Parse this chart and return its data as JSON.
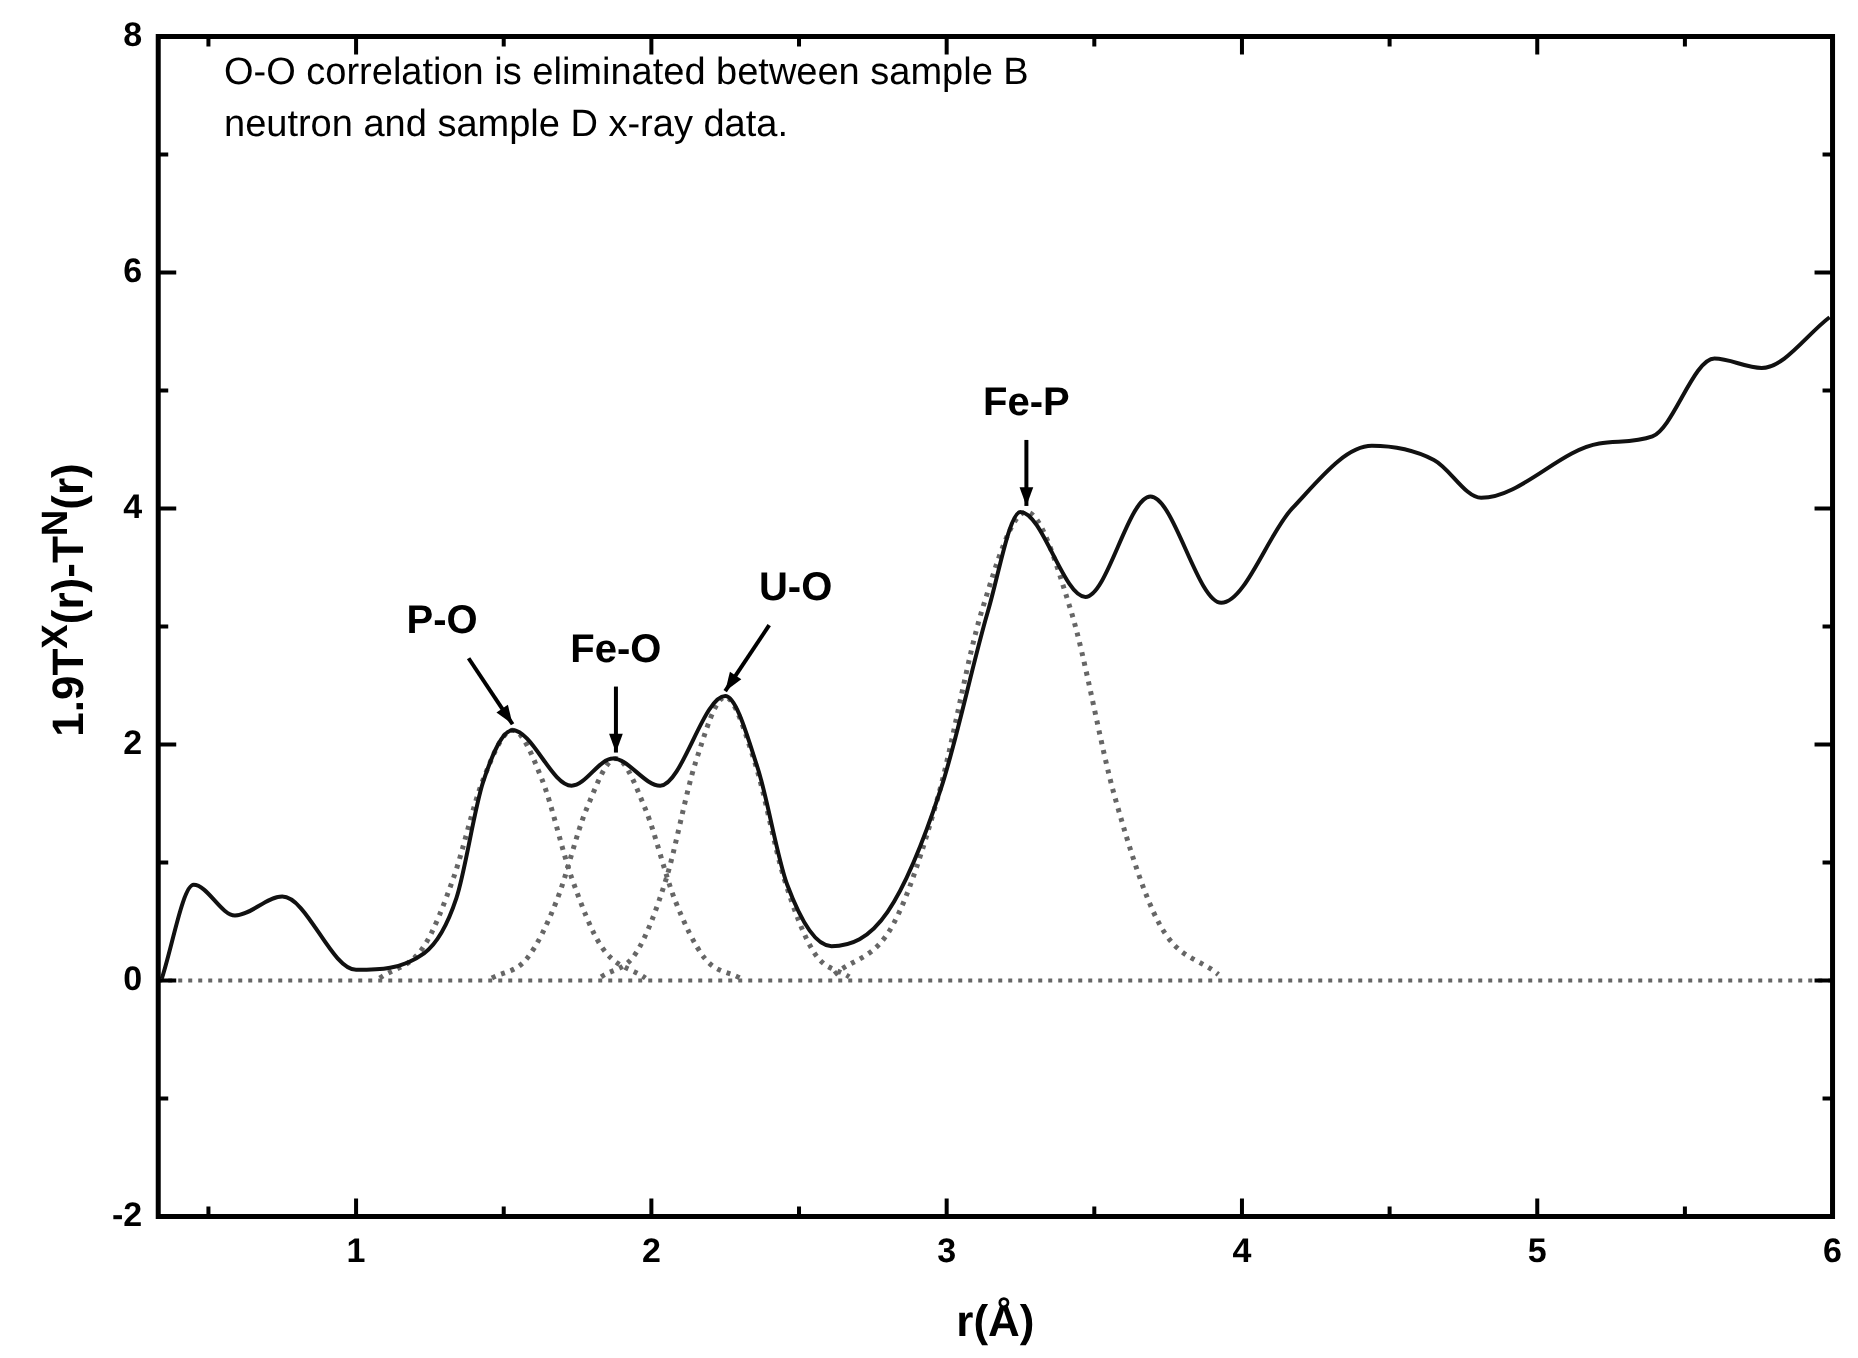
{
  "chart_data": {
    "type": "line",
    "xlabel": "r(Å)",
    "ylabel": "1.9T$^{X}$(r)-T$^{N}$(r)",
    "xlim": [
      0.33,
      6
    ],
    "ylim": [
      -2,
      8
    ],
    "xticks": [
      {
        "value": 0.5,
        "label": null
      },
      1,
      {
        "value": 1.5,
        "label": null
      },
      2,
      {
        "value": 2.5,
        "label": null
      },
      3,
      {
        "value": 3.5,
        "label": null
      },
      4,
      {
        "value": 4.5,
        "label": null
      },
      5,
      {
        "value": 5.5,
        "label": null
      },
      6
    ],
    "yticks": [
      -2,
      {
        "value": -1,
        "label": null
      },
      0,
      {
        "value": 1,
        "label": null
      },
      2,
      {
        "value": 3,
        "label": null
      },
      4,
      {
        "value": 5,
        "label": null
      },
      6,
      {
        "value": 7,
        "label": null
      },
      8
    ],
    "grid": false,
    "legend": false,
    "marker": "none",
    "series": [
      {
        "color": "#111111",
        "line_style": "solid",
        "x": [
          0.34,
          0.45,
          0.59,
          0.75,
          1.0,
          1.23,
          1.34,
          1.43,
          1.53,
          1.73,
          1.87,
          2.03,
          2.25,
          2.36,
          2.46,
          2.61,
          2.8,
          2.98,
          3.14,
          3.25,
          3.47,
          3.69,
          3.93,
          4.17,
          4.44,
          4.65,
          4.81,
          5.21,
          5.39,
          5.6,
          5.76,
          5.99
        ],
        "values": [
          0,
          0.81,
          0.55,
          0.71,
          0.09,
          0.23,
          0.7,
          1.68,
          2.12,
          1.65,
          1.88,
          1.65,
          2.41,
          1.8,
          0.81,
          0.29,
          0.58,
          1.62,
          3.13,
          3.97,
          3.25,
          4.1,
          3.2,
          4.0,
          4.53,
          4.41,
          4.09,
          4.55,
          4.61,
          5.27,
          5.19,
          5.62
        ]
      },
      {
        "color": "#666666",
        "line_style": "dotted",
        "x": [
          1.08,
          1.23,
          1.33,
          1.43,
          1.53,
          1.63,
          1.73,
          1.83,
          1.98
        ],
        "values": [
          0.02,
          0.29,
          0.87,
          1.7,
          2.12,
          1.7,
          0.87,
          0.29,
          0.02
        ]
      },
      {
        "color": "#666666",
        "line_style": "dotted",
        "x": [
          1.46,
          1.58,
          1.68,
          1.78,
          1.88,
          1.98,
          2.08,
          2.18,
          2.3
        ],
        "values": [
          0.02,
          0.19,
          0.68,
          1.45,
          1.88,
          1.45,
          0.68,
          0.19,
          0.02
        ]
      },
      {
        "color": "#666666",
        "line_style": "dotted",
        "x": [
          1.83,
          1.95,
          2.05,
          2.15,
          2.25,
          2.35,
          2.45,
          2.55,
          2.67
        ],
        "values": [
          0.03,
          0.24,
          0.86,
          1.85,
          2.4,
          1.85,
          0.86,
          0.24,
          0.03
        ]
      },
      {
        "color": "#666666",
        "line_style": "dotted",
        "x": [
          2.62,
          2.82,
          2.97,
          3.12,
          3.27,
          3.42,
          3.57,
          3.72,
          3.92
        ],
        "values": [
          0.05,
          0.48,
          1.55,
          3.14,
          3.97,
          3.14,
          1.55,
          0.48,
          0.05
        ]
      }
    ],
    "ref_lines": [
      {
        "axis": "y",
        "value": 0,
        "color": "#666666",
        "line_style": "dotted"
      }
    ],
    "annotations": [
      "O-O correlation is eliminated between sample B neutron and sample D x-ray data.",
      {
        "text": "P-O",
        "x": 1.53,
        "y": 2.12
      },
      {
        "text": "Fe-O",
        "x": 1.88,
        "y": 1.88
      },
      {
        "text": "U-O",
        "x": 2.25,
        "y": 2.4
      },
      {
        "text": "Fe-P",
        "x": 3.27,
        "y": 3.97
      }
    ]
  }
}
